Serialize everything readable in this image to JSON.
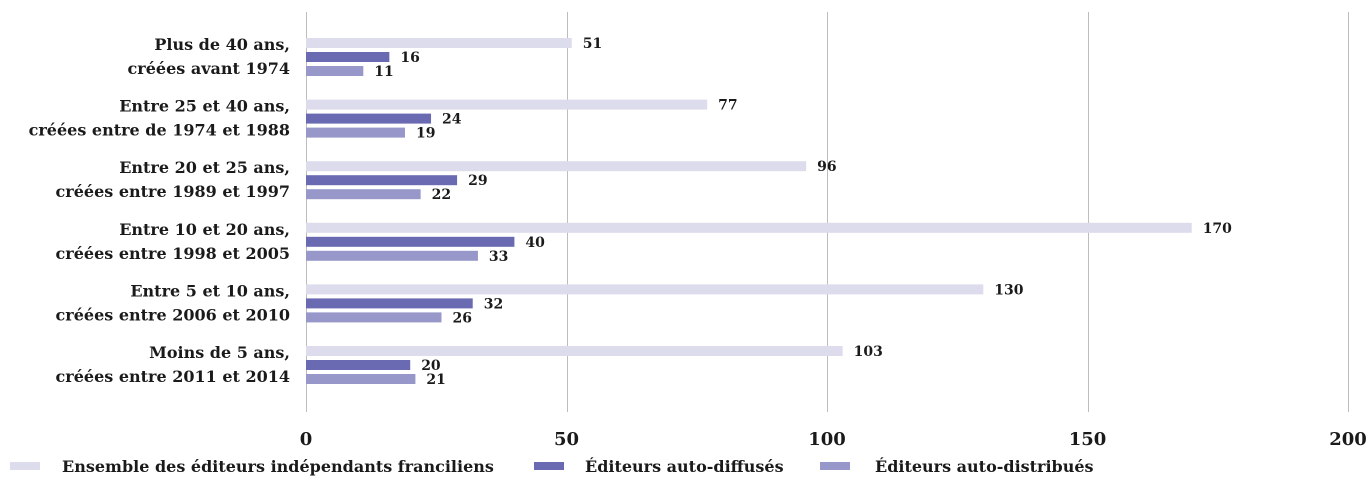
{
  "chart_data": {
    "type": "bar",
    "orientation": "horizontal",
    "categories": [
      [
        "Plus de 40 ans,",
        "créées avant 1974"
      ],
      [
        "Entre 25 et 40 ans,",
        "créées entre de 1974 et 1988"
      ],
      [
        "Entre 20 et 25 ans,",
        "créées entre 1989 et 1997"
      ],
      [
        "Entre 10 et 20 ans,",
        "créées entre 1998 et 2005"
      ],
      [
        "Entre 5 et 10 ans,",
        "créées entre 2006 et 2010"
      ],
      [
        "Moins de 5 ans,",
        "créées entre 2011 et 2014"
      ]
    ],
    "series": [
      {
        "name": "Ensemble des éditeurs indépendants franciliens",
        "color": "#dcdcec",
        "values": [
          51,
          77,
          96,
          170,
          130,
          103
        ]
      },
      {
        "name": "Éditeurs auto-diffusés",
        "color": "#6a6ab2",
        "values": [
          16,
          24,
          29,
          40,
          32,
          20
        ]
      },
      {
        "name": "Éditeurs auto-distribués",
        "color": "#9797c9",
        "values": [
          11,
          19,
          22,
          33,
          26,
          21
        ]
      }
    ],
    "xlim": [
      0,
      200
    ],
    "xticks": [
      "0",
      "50",
      "100",
      "150",
      "200"
    ],
    "grid": true,
    "legend_position": "bottom-left"
  }
}
